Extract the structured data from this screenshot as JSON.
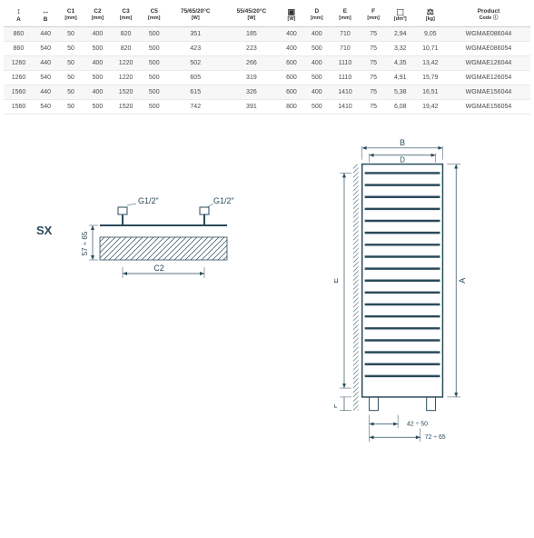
{
  "table": {
    "columns": [
      {
        "line1": "A",
        "line2": "",
        "icon": "↕"
      },
      {
        "line1": "B",
        "line2": "",
        "icon": "↔"
      },
      {
        "line1": "C1",
        "line2": "[mm]"
      },
      {
        "line1": "C2",
        "line2": "[mm]"
      },
      {
        "line1": "C3",
        "line2": "[mm]"
      },
      {
        "line1": "C5",
        "line2": "[mm]"
      },
      {
        "line1": "75/65/20°C",
        "line2": "[W]"
      },
      {
        "line1": "55/45/20°C",
        "line2": "[W]"
      },
      {
        "line1": "",
        "line2": "[W]",
        "icon": "▣"
      },
      {
        "line1": "D",
        "line2": "[mm]"
      },
      {
        "line1": "E",
        "line2": "[mm]"
      },
      {
        "line1": "F",
        "line2": "[mm]"
      },
      {
        "line1": "",
        "line2": "[dm³]",
        "icon": "⬚"
      },
      {
        "line1": "",
        "line2": "[kg]",
        "icon": "⚖"
      },
      {
        "line1": "Product",
        "line2": "Code ⓘ"
      }
    ],
    "rows": [
      [
        "860",
        "440",
        "50",
        "400",
        "820",
        "500",
        "351",
        "185",
        "400",
        "400",
        "710",
        "75",
        "2,94",
        "9,05",
        "WGMAE086044"
      ],
      [
        "860",
        "540",
        "50",
        "500",
        "820",
        "500",
        "423",
        "223",
        "400",
        "500",
        "710",
        "75",
        "3,32",
        "10,71",
        "WGMAE086054"
      ],
      [
        "1260",
        "440",
        "50",
        "400",
        "1220",
        "500",
        "502",
        "266",
        "600",
        "400",
        "1110",
        "75",
        "4,35",
        "13,42",
        "WGMAE126044"
      ],
      [
        "1260",
        "540",
        "50",
        "500",
        "1220",
        "500",
        "605",
        "319",
        "600",
        "500",
        "1110",
        "75",
        "4,91",
        "15,79",
        "WGMAE126054"
      ],
      [
        "1560",
        "440",
        "50",
        "400",
        "1520",
        "500",
        "615",
        "326",
        "600",
        "400",
        "1410",
        "75",
        "5,38",
        "16,51",
        "WGMAE156044"
      ],
      [
        "1560",
        "540",
        "50",
        "500",
        "1520",
        "500",
        "742",
        "391",
        "800",
        "500",
        "1410",
        "75",
        "6,08",
        "19,42",
        "WGMAE156054"
      ]
    ]
  },
  "diagrams": {
    "sx_label": "SX",
    "g12_left": "G1/2\"",
    "g12_right": "G1/2\"",
    "c2_label": "C2",
    "v_dim": "57 ÷ 65",
    "b_label": "B",
    "d_label": "D",
    "a_label": "A",
    "e_label": "E",
    "f_label": "F",
    "bottom_dim1": "42 ÷ 50",
    "bottom_dim2": "72 ÷ 65",
    "stroke": "#2a4a5a",
    "hatch": "#2a4a5a",
    "bar_count": 18
  }
}
